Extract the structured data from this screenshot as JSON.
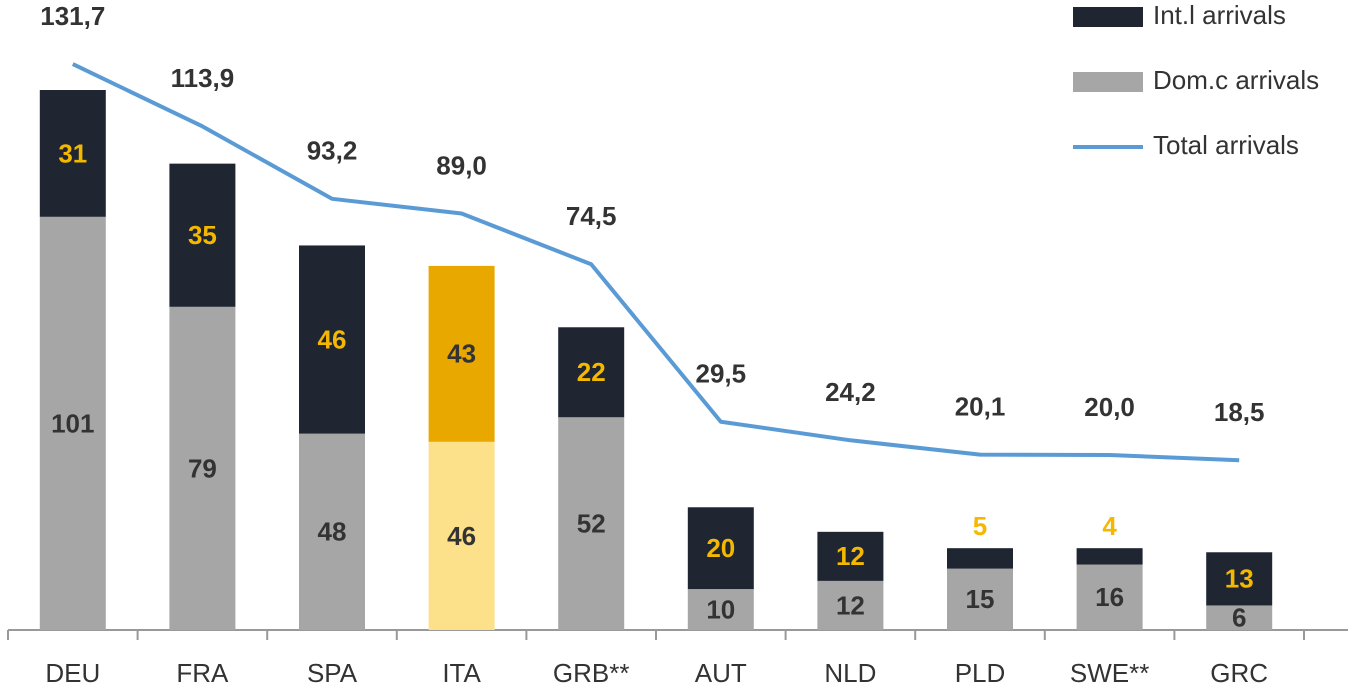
{
  "chart_data": {
    "type": "bar",
    "stacked": true,
    "categories": [
      "DEU",
      "FRA",
      "SPA",
      "ITA",
      "GRB**",
      "AUT",
      "NLD",
      "PLD",
      "SWE**",
      "GRC"
    ],
    "series": [
      {
        "name": "Int.l arrivals",
        "color": "#1f2631",
        "colors": [
          "#1f2631",
          "#1f2631",
          "#1f2631",
          "#e8a800",
          "#1f2631",
          "#1f2631",
          "#1f2631",
          "#1f2631",
          "#1f2631",
          "#1f2631"
        ],
        "values": [
          31,
          35,
          46,
          43,
          22,
          20,
          12,
          5,
          4,
          13
        ]
      },
      {
        "name": "Dom.c arrivals",
        "color": "#a6a6a6",
        "colors": [
          "#a6a6a6",
          "#a6a6a6",
          "#a6a6a6",
          "#fde08a",
          "#a6a6a6",
          "#a6a6a6",
          "#a6a6a6",
          "#a6a6a6",
          "#a6a6a6",
          "#a6a6a6"
        ],
        "values": [
          101,
          79,
          48,
          46,
          52,
          10,
          12,
          15,
          16,
          6
        ]
      },
      {
        "name": "Total arrivals",
        "type": "line",
        "axis": "y2",
        "color": "#5b9bd5",
        "values": [
          131.7,
          113.9,
          93.2,
          89.0,
          74.5,
          29.5,
          24.2,
          20.1,
          20.0,
          18.5
        ],
        "value_labels": [
          "131,7",
          "113,9",
          "93,2",
          "89,0",
          "74,5",
          "29,5",
          "24,2",
          "20,1",
          "20,0",
          "18,5"
        ]
      }
    ],
    "ylim": [
      0,
      154
    ],
    "y2lim": [
      -30,
      150
    ],
    "legend": "top-right"
  }
}
